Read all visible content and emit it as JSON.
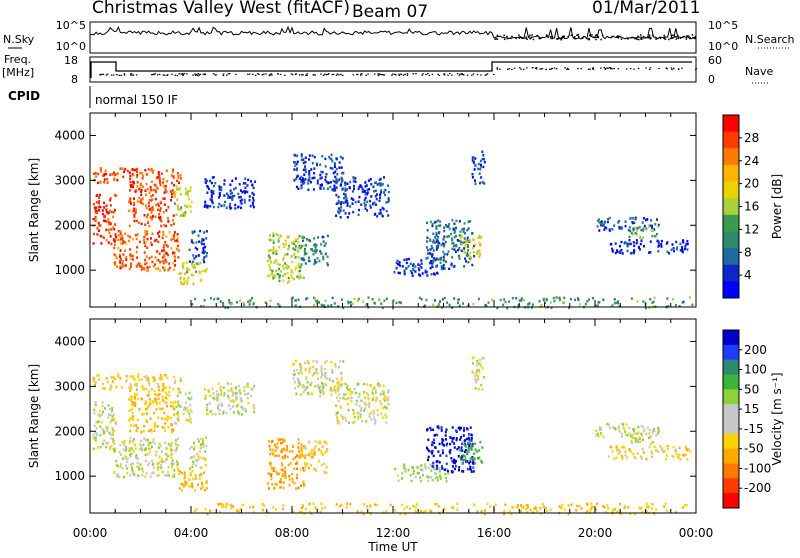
{
  "header": {
    "station": "Christmas Valley West (fitACF)",
    "beam": "Beam 07",
    "date": "01/Mar/2011"
  },
  "strip_panels": {
    "nsky_label": "N.Sky",
    "nsky_ticks": [
      "10^5",
      "10^0"
    ],
    "nsearch_label": "N.Search",
    "nsearch_ticks": [
      "10^5",
      "10^0"
    ],
    "freq_label": "Freq.",
    "freq_unit": "[MHz]",
    "freq_ticks": [
      "18",
      "8"
    ],
    "nave_label": "Nave",
    "nave_ticks": [
      "60",
      "0"
    ],
    "cpid_label": "CPID",
    "cpid_value": "normal 150 IF"
  },
  "chart_data": [
    {
      "type": "heatmap",
      "title": "Beam 07",
      "parameter": "Power",
      "colorbar_label": "Power [dB]",
      "colorbar_ticks": [
        "28",
        "24",
        "20",
        "16",
        "12",
        "8",
        "4"
      ],
      "colorbar_colors": [
        "#ff0000",
        "#ff3b00",
        "#ff7a00",
        "#ffb400",
        "#e8d200",
        "#a8d23c",
        "#3c9a50",
        "#2e8a6e",
        "#1e6aa0",
        "#0a28c8",
        "#0000ff"
      ],
      "xlabel": "",
      "ylabel": "Slant Range [km]",
      "xlim": [
        0,
        24
      ],
      "ylim": [
        180,
        4500
      ],
      "yticks": [
        "4000",
        "3000",
        "2000",
        "1000"
      ],
      "x_tick_labels": [
        "00:00",
        "04:00",
        "08:00",
        "12:00",
        "16:00",
        "20:00",
        "00:00"
      ],
      "echo_regions": [
        {
          "t0": 0.1,
          "t1": 3.6,
          "r0": 2950,
          "r1": 3300,
          "v": 27
        },
        {
          "t0": 0.1,
          "t1": 1.0,
          "r0": 1600,
          "r1": 2700,
          "v": 29
        },
        {
          "t0": 0.9,
          "t1": 3.5,
          "r0": 1000,
          "r1": 1900,
          "v": 26
        },
        {
          "t0": 1.5,
          "t1": 3.3,
          "r0": 2000,
          "r1": 2950,
          "v": 27
        },
        {
          "t0": 3.3,
          "t1": 4.0,
          "r0": 2200,
          "r1": 2900,
          "v": 17
        },
        {
          "t0": 3.5,
          "t1": 4.6,
          "r0": 700,
          "r1": 1200,
          "v": 18
        },
        {
          "t0": 3.9,
          "t1": 4.6,
          "r0": 1200,
          "r1": 1900,
          "v": 6
        },
        {
          "t0": 4.5,
          "t1": 6.5,
          "r0": 2400,
          "r1": 3100,
          "v": 5
        },
        {
          "t0": 7.0,
          "t1": 8.5,
          "r0": 750,
          "r1": 1850,
          "v": 16
        },
        {
          "t0": 8.3,
          "t1": 9.4,
          "r0": 1100,
          "r1": 1800,
          "v": 10
        },
        {
          "t0": 8.0,
          "t1": 10.0,
          "r0": 2800,
          "r1": 3600,
          "v": 5
        },
        {
          "t0": 9.7,
          "t1": 11.8,
          "r0": 2200,
          "r1": 3100,
          "v": 5
        },
        {
          "t0": 12.0,
          "t1": 14.2,
          "r0": 900,
          "r1": 1300,
          "v": 5
        },
        {
          "t0": 13.3,
          "t1": 15.2,
          "r0": 1100,
          "r1": 2150,
          "v": 8
        },
        {
          "t0": 14.6,
          "t1": 15.5,
          "r0": 1300,
          "r1": 1800,
          "v": 18
        },
        {
          "t0": 15.1,
          "t1": 15.6,
          "r0": 2900,
          "r1": 3700,
          "v": 5
        },
        {
          "t0": 20.0,
          "t1": 22.5,
          "r0": 1900,
          "r1": 2200,
          "v": 7
        },
        {
          "t0": 21.3,
          "t1": 22.5,
          "r0": 1750,
          "r1": 2000,
          "v": 14
        },
        {
          "t0": 20.5,
          "t1": 23.8,
          "r0": 1400,
          "r1": 1700,
          "v": 4
        },
        {
          "t0": 4.0,
          "t1": 24.0,
          "r0": 180,
          "r1": 420,
          "v": 12
        }
      ]
    },
    {
      "type": "heatmap",
      "parameter": "Velocity",
      "colorbar_label": "Velocity [m s^-1]",
      "colorbar_ticks": [
        "200",
        "100",
        "50",
        "15",
        "-15",
        "-50",
        "-100",
        "-200"
      ],
      "colorbar_colors": [
        "#0000c8",
        "#1e3cff",
        "#2e8a6e",
        "#3cb43c",
        "#8cd23c",
        "#c8c8c8",
        "#c8c8c8",
        "#ffd200",
        "#ffaa00",
        "#ff7a00",
        "#ff3b00",
        "#ff0000"
      ],
      "xlabel": "Time UT",
      "ylabel": "Slant Range [km]",
      "xlim": [
        0,
        24
      ],
      "ylim": [
        180,
        4500
      ],
      "yticks": [
        "4000",
        "3000",
        "2000",
        "1000"
      ],
      "x_tick_labels": [
        "00:00",
        "04:00",
        "08:00",
        "12:00",
        "16:00",
        "20:00",
        "00:00"
      ],
      "echo_regions": [
        {
          "t0": 0.1,
          "t1": 3.6,
          "r0": 2950,
          "r1": 3300,
          "v": -20
        },
        {
          "t0": 0.1,
          "t1": 1.0,
          "r0": 1600,
          "r1": 2700,
          "v": 0
        },
        {
          "t0": 0.9,
          "t1": 3.5,
          "r0": 1000,
          "r1": 1900,
          "v": 0
        },
        {
          "t0": 1.5,
          "t1": 3.3,
          "r0": 2000,
          "r1": 2950,
          "v": -30
        },
        {
          "t0": 3.3,
          "t1": 4.0,
          "r0": 2200,
          "r1": 2900,
          "v": 0
        },
        {
          "t0": 3.5,
          "t1": 4.6,
          "r0": 700,
          "r1": 1200,
          "v": -40
        },
        {
          "t0": 3.9,
          "t1": 4.6,
          "r0": 1200,
          "r1": 1900,
          "v": 0
        },
        {
          "t0": 4.5,
          "t1": 6.5,
          "r0": 2400,
          "r1": 3100,
          "v": 0
        },
        {
          "t0": 7.0,
          "t1": 8.5,
          "r0": 750,
          "r1": 1850,
          "v": -60
        },
        {
          "t0": 8.3,
          "t1": 9.4,
          "r0": 1100,
          "r1": 1800,
          "v": -20
        },
        {
          "t0": 8.0,
          "t1": 10.0,
          "r0": 2800,
          "r1": 3600,
          "v": 0
        },
        {
          "t0": 9.7,
          "t1": 11.8,
          "r0": 2200,
          "r1": 3100,
          "v": 0
        },
        {
          "t0": 12.0,
          "t1": 14.2,
          "r0": 900,
          "r1": 1300,
          "v": 10
        },
        {
          "t0": 13.3,
          "t1": 15.2,
          "r0": 1100,
          "r1": 2150,
          "v": 220
        },
        {
          "t0": 14.6,
          "t1": 15.5,
          "r0": 1300,
          "r1": 1800,
          "v": 60
        },
        {
          "t0": 15.1,
          "t1": 15.6,
          "r0": 2900,
          "r1": 3700,
          "v": 0
        },
        {
          "t0": 20.0,
          "t1": 22.5,
          "r0": 1900,
          "r1": 2200,
          "v": 0
        },
        {
          "t0": 21.3,
          "t1": 22.5,
          "r0": 1750,
          "r1": 2000,
          "v": 0
        },
        {
          "t0": 20.5,
          "t1": 23.8,
          "r0": 1400,
          "r1": 1700,
          "v": -20
        },
        {
          "t0": 4.0,
          "t1": 24.0,
          "r0": 180,
          "r1": 420,
          "v": -30
        }
      ]
    }
  ]
}
